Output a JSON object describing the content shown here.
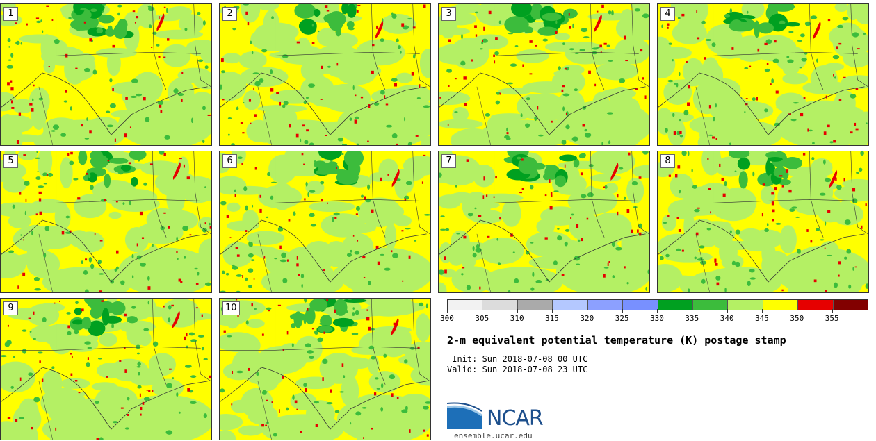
{
  "panels": [
    {
      "label": "1"
    },
    {
      "label": "2"
    },
    {
      "label": "3"
    },
    {
      "label": "4"
    },
    {
      "label": "5"
    },
    {
      "label": "6"
    },
    {
      "label": "7"
    },
    {
      "label": "8"
    },
    {
      "label": "9"
    },
    {
      "label": "10"
    }
  ],
  "colorbar": {
    "colors": [
      "#f2f2f2",
      "#dcdcdc",
      "#aaaaaa",
      "#b4c8ff",
      "#8ca0ff",
      "#7890ff",
      "#00a020",
      "#3cbc3c",
      "#b4f064",
      "#ffff00",
      "#e60000",
      "#820000"
    ],
    "ticks": [
      "300",
      "305",
      "310",
      "315",
      "320",
      "325",
      "330",
      "335",
      "340",
      "345",
      "350",
      "355"
    ]
  },
  "map_colors": {
    "base": "#ffff00",
    "light_green": "#b4f064",
    "green": "#3cbc3c",
    "dark_green": "#00a020",
    "red": "#e60000",
    "border": "#333333"
  },
  "title": "2-m equivalent potential temperature (K) postage stamp",
  "init": " Init: Sun 2018-07-08 00 UTC",
  "valid": "Valid: Sun 2018-07-08 23 UTC",
  "logo": {
    "text": "NCAR"
  },
  "site": "ensemble.ucar.edu"
}
